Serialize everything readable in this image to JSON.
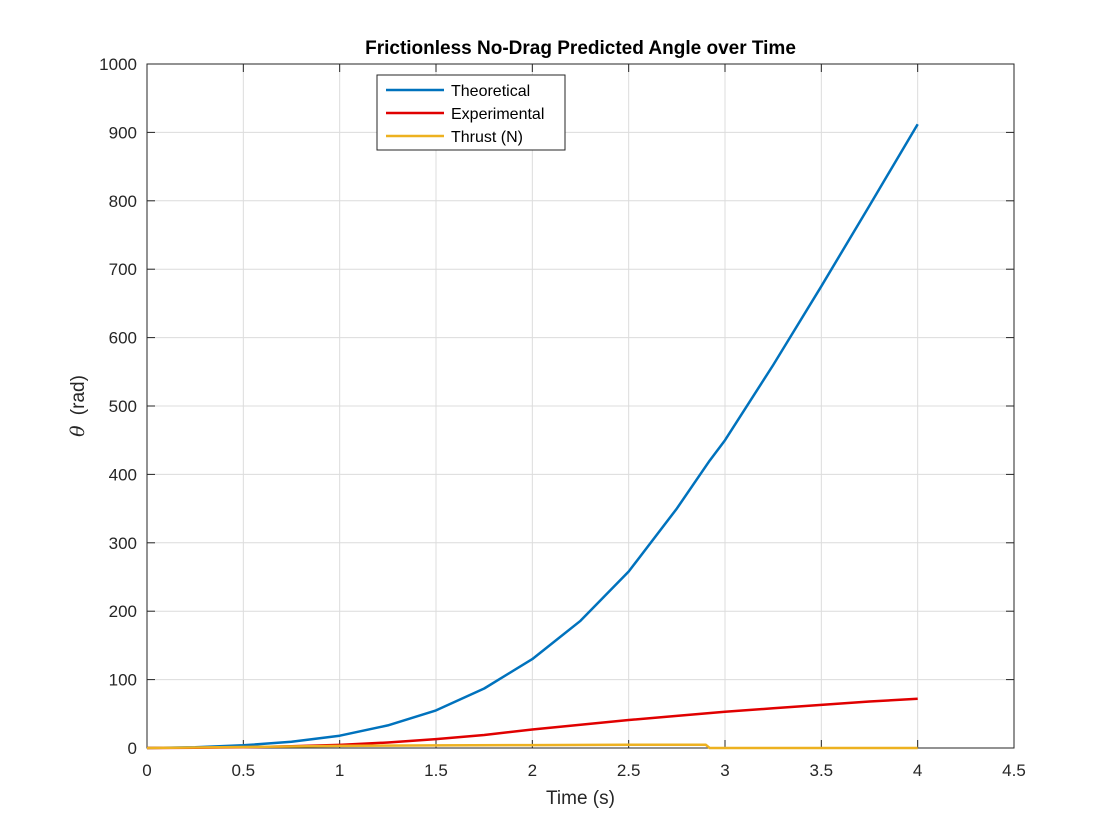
{
  "chart_data": {
    "type": "line",
    "title": "Frictionless No-Drag Predicted Angle over Time",
    "xlabel": "Time (s)",
    "ylabel_symbol": "θ",
    "ylabel_unit": "(rad)",
    "xlim": [
      0,
      4.5
    ],
    "ylim": [
      0,
      1000
    ],
    "xticks": [
      0,
      0.5,
      1,
      1.5,
      2,
      2.5,
      3,
      3.5,
      4,
      4.5
    ],
    "xtick_labels": [
      "0",
      "0.5",
      "1",
      "1.5",
      "2",
      "2.5",
      "3",
      "3.5",
      "4",
      "4.5"
    ],
    "yticks": [
      0,
      100,
      200,
      300,
      400,
      500,
      600,
      700,
      800,
      900,
      1000
    ],
    "ytick_labels": [
      "0",
      "100",
      "200",
      "300",
      "400",
      "500",
      "600",
      "700",
      "800",
      "900",
      "1000"
    ],
    "grid": true,
    "legend_position": "top-center",
    "series": [
      {
        "name": "Theoretical",
        "color": "#0072BD",
        "x": [
          0,
          0.25,
          0.5,
          0.75,
          1.0,
          1.25,
          1.5,
          1.75,
          2.0,
          2.25,
          2.5,
          2.75,
          2.92,
          3.0,
          3.25,
          3.5,
          3.75,
          4.0
        ],
        "y": [
          0,
          1,
          4,
          9,
          18,
          33,
          55,
          87,
          130,
          186,
          258,
          350,
          420,
          450,
          560,
          675,
          793,
          912
        ]
      },
      {
        "name": "Experimental",
        "color": "#E00000",
        "x": [
          0,
          0.25,
          0.5,
          0.75,
          1.0,
          1.25,
          1.5,
          1.75,
          2.0,
          2.25,
          2.5,
          2.75,
          3.0,
          3.25,
          3.5,
          3.75,
          4.0
        ],
        "y": [
          0,
          0.3,
          1,
          2.5,
          4.5,
          8,
          13,
          19,
          27,
          34,
          41,
          47,
          53,
          58,
          63,
          68,
          72
        ]
      },
      {
        "name": "Thrust (N)",
        "color": "#EDB120",
        "x": [
          0,
          0.5,
          1.0,
          1.5,
          2.0,
          2.5,
          2.9,
          2.92,
          3.0,
          3.5,
          4.0
        ],
        "y": [
          0,
          1.5,
          3,
          3.8,
          4.3,
          4.8,
          4.8,
          0,
          0,
          0,
          0
        ]
      }
    ]
  }
}
